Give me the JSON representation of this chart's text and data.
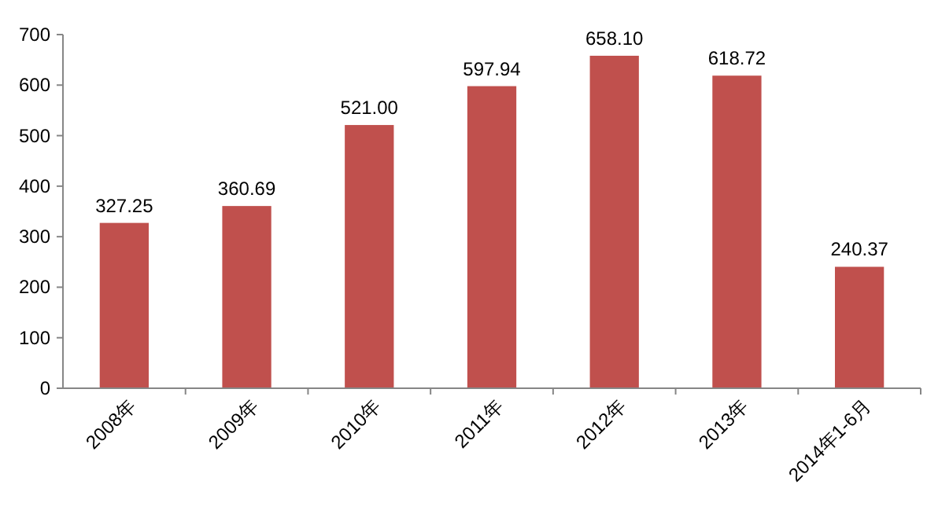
{
  "chart_data": {
    "type": "bar",
    "categories": [
      "2008年",
      "2009年",
      "2010年",
      "2011年",
      "2012年",
      "2013年",
      "2014年1-6月"
    ],
    "values": [
      327.25,
      360.69,
      521.0,
      597.94,
      658.1,
      618.72,
      240.37
    ],
    "value_labels": [
      "327.25",
      "360.69",
      "521.00",
      "597.94",
      "658.10",
      "618.72",
      "240.37"
    ],
    "color": "#c0504d",
    "ylim": [
      0,
      700
    ],
    "yticks": [
      0,
      100,
      200,
      300,
      400,
      500,
      600,
      700
    ],
    "grid": false
  }
}
